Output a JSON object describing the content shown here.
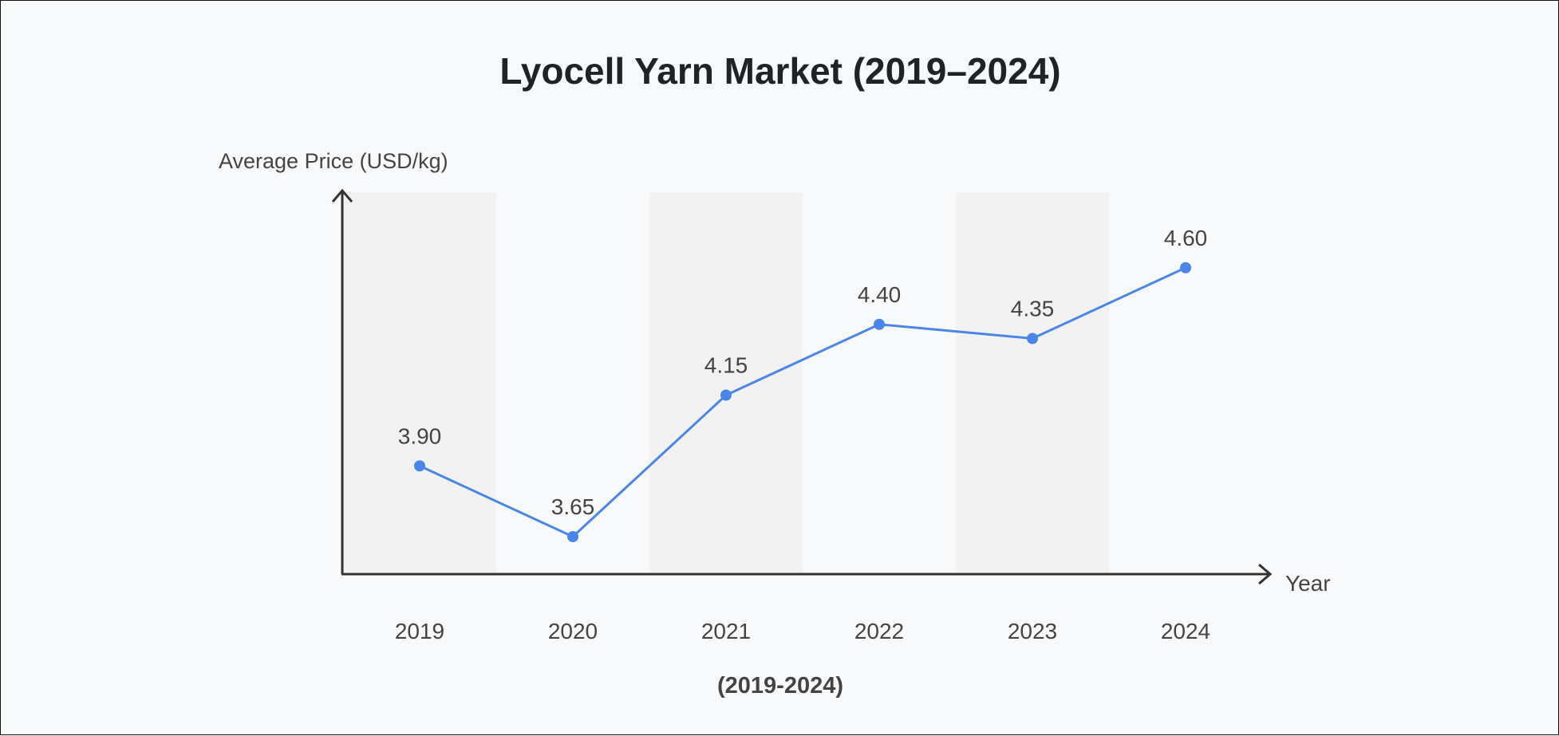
{
  "chart_data": {
    "type": "line",
    "title": "Lyocell Yarn Market (2019–2024)",
    "subtitle": "(2019-2024)",
    "xlabel": "Year",
    "ylabel": "Average Price (USD/kg)",
    "categories": [
      "2019",
      "2020",
      "2021",
      "2022",
      "2023",
      "2024"
    ],
    "values": [
      3.9,
      3.65,
      4.15,
      4.4,
      4.35,
      4.6
    ],
    "data_labels": [
      "3.90",
      "3.65",
      "4.15",
      "4.40",
      "4.35",
      "4.60"
    ],
    "grid": false,
    "alternating_bands": true,
    "colors": {
      "line": "#4a86e8",
      "axis": "#333333",
      "text": "#444444",
      "title": "#1f2328",
      "band": "#f2f2f2"
    }
  }
}
